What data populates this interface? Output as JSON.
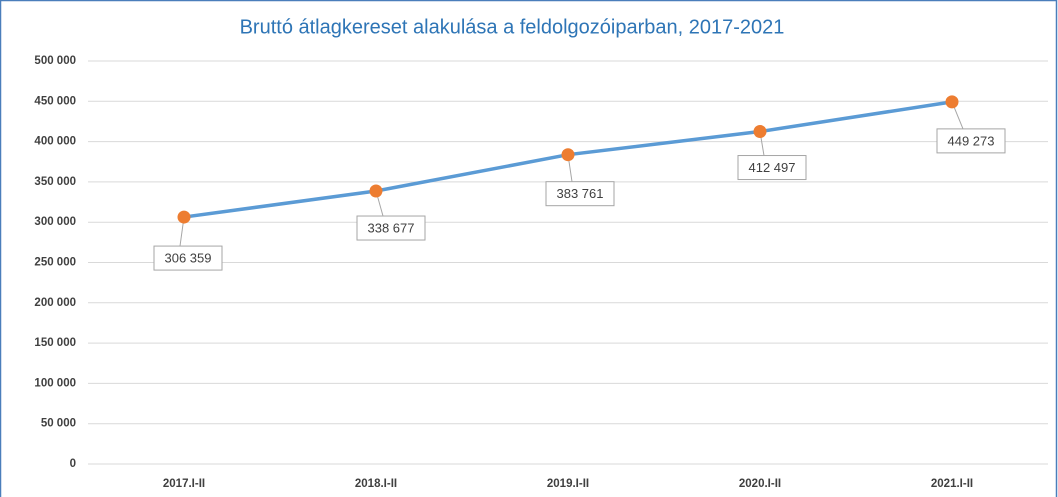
{
  "chart_data": {
    "type": "line",
    "title": "Bruttó átlagkereset alakulása a feldolgozóiparban, 2017-2021",
    "categories": [
      "2017.I-II",
      "2018.I-II",
      "2019.I-II",
      "2020.I-II",
      "2021.I-II"
    ],
    "series": [
      {
        "name": "Bruttó átlagkereset",
        "color": "#5b9bd5",
        "marker_color": "#ed7d31",
        "values": [
          306359,
          338677,
          383761,
          412497,
          449273
        ],
        "value_labels": [
          "306 359",
          "338 677",
          "383 761",
          "412 497",
          "449 273"
        ]
      }
    ],
    "ylim": [
      0,
      500000
    ],
    "yticks": [
      0,
      {
        "value": 50000,
        "label": "50 000"
      },
      {
        "value": 100000,
        "label": "100 000"
      },
      {
        "value": 150000,
        "label": "150 000"
      },
      {
        "value": 200000,
        "label": "200 000"
      },
      {
        "value": 250000,
        "label": "250 000"
      },
      {
        "value": 300000,
        "label": "300 000"
      },
      {
        "value": 350000,
        "label": "350 000"
      },
      {
        "value": 400000,
        "label": "400 000"
      },
      {
        "value": 450000,
        "label": "450 000"
      },
      {
        "value": 500000,
        "label": "500 000"
      }
    ],
    "grid": true
  }
}
